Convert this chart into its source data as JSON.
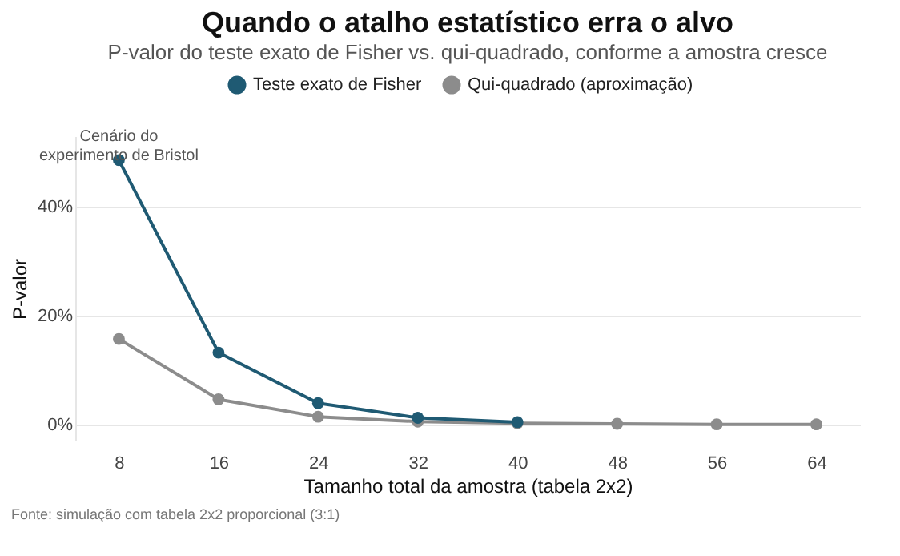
{
  "chart_data": {
    "type": "line",
    "title": "Quando o atalho estatístico erra o alvo",
    "subtitle": "P-valor do teste exato de Fisher vs. qui-quadrado, conforme a amostra cresce",
    "xlabel": "Tamanho total da amostra (tabela 2x2)",
    "ylabel": "P-valor",
    "x": [
      8,
      16,
      24,
      32,
      40,
      48,
      56,
      64
    ],
    "series": [
      {
        "name": "Teste exato de Fisher",
        "color": "#1f5a73",
        "values": [
          48.6,
          13.2,
          3.9,
          1.2,
          0.4,
          null,
          null,
          null
        ]
      },
      {
        "name": "Qui-quadrado (aproximação)",
        "color": "#8c8c8c",
        "values": [
          15.7,
          4.6,
          1.4,
          0.5,
          0.2,
          0.1,
          0.0,
          0.0
        ]
      }
    ],
    "xlim": [
      4.5,
      67.5
    ],
    "xticks": [
      8,
      16,
      24,
      32,
      40,
      48,
      56,
      64
    ],
    "ylim": [
      -3,
      53
    ],
    "yticks": [
      {
        "value": 0,
        "label": "0%"
      },
      {
        "value": 20,
        "label": "20%"
      },
      {
        "value": 40,
        "label": "40%"
      }
    ],
    "grid": "y",
    "legend": "top",
    "marker": "circle",
    "line_style": "solid",
    "annotations": [
      {
        "text": "Cenário do\nexperimento de Bristol",
        "x": 8,
        "y": 48.6
      },
      "Fonte: simulação com tabela 2x2 proporcional (3:1)"
    ]
  }
}
